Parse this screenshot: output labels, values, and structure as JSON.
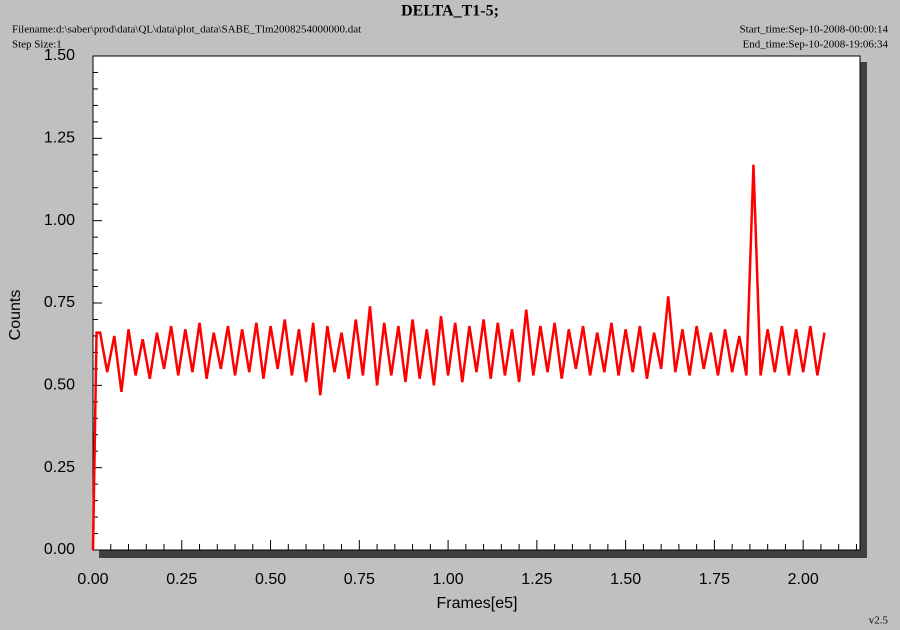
{
  "chart_data": {
    "type": "line",
    "title": "DELTA_T1-5;",
    "filename": "Filename:d:\\saber\\prod\\data\\QL\\data\\plot_data\\SABE_Tlm2008254000000.dat",
    "step_size": "Step Size:1",
    "start_time": "Start_time:Sep-10-2008-00:00:14",
    "end_time": "End_time:Sep-10-2008-19:06:34",
    "version": "v2.5",
    "xlabel": "Frames[e5]",
    "ylabel": "Counts",
    "xlim": [
      0,
      2.16
    ],
    "ylim": [
      0,
      1.5
    ],
    "xticks": [
      {
        "value": 0,
        "label": "0.00"
      },
      {
        "value": 0.25,
        "label": "0.25"
      },
      {
        "value": 0.5,
        "label": "0.50"
      },
      {
        "value": 0.75,
        "label": "0.75"
      },
      {
        "value": 1,
        "label": "1.00"
      },
      {
        "value": 1.25,
        "label": "1.25"
      },
      {
        "value": 1.5,
        "label": "1.50"
      },
      {
        "value": 1.75,
        "label": "1.75"
      },
      {
        "value": 2,
        "label": "2.00"
      }
    ],
    "yticks": [
      {
        "value": 0,
        "label": "0.00"
      },
      {
        "value": 0.25,
        "label": "0.25"
      },
      {
        "value": 0.5,
        "label": "0.50"
      },
      {
        "value": 0.75,
        "label": "0.75"
      },
      {
        "value": 1,
        "label": "1.00"
      },
      {
        "value": 1.25,
        "label": "1.25"
      },
      {
        "value": 1.5,
        "label": "1.50"
      }
    ],
    "xticks_minor": [
      0.05,
      0.1,
      0.15,
      0.2,
      0.3,
      0.35,
      0.4,
      0.45,
      0.55,
      0.6,
      0.65,
      0.7,
      0.8,
      0.85,
      0.9,
      0.95,
      1.05,
      1.1,
      1.15,
      1.2,
      1.3,
      1.35,
      1.4,
      1.45,
      1.55,
      1.6,
      1.65,
      1.7,
      1.8,
      1.85,
      1.9,
      1.95,
      2.05,
      2.1,
      2.15
    ],
    "yticks_minor": [
      0.05,
      0.1,
      0.15,
      0.2,
      0.3,
      0.35,
      0.4,
      0.45,
      0.55,
      0.6,
      0.65,
      0.7,
      0.8,
      0.85,
      0.9,
      0.95,
      1.05,
      1.1,
      1.15,
      1.2,
      1.3,
      1.35,
      1.4,
      1.45
    ],
    "series": [
      {
        "color": "#ff0000",
        "x": [
          0,
          0.01,
          0.02,
          0.04,
          0.06,
          0.08,
          0.1,
          0.12,
          0.14,
          0.16,
          0.18,
          0.2,
          0.22,
          0.24,
          0.26,
          0.28,
          0.3,
          0.32,
          0.34,
          0.36,
          0.38,
          0.4,
          0.42,
          0.44,
          0.46,
          0.48,
          0.5,
          0.52,
          0.54,
          0.56,
          0.58,
          0.6,
          0.62,
          0.64,
          0.66,
          0.68,
          0.7,
          0.72,
          0.74,
          0.76,
          0.78,
          0.8,
          0.82,
          0.84,
          0.86,
          0.88,
          0.9,
          0.92,
          0.94,
          0.96,
          0.98,
          1.0,
          1.02,
          1.04,
          1.06,
          1.08,
          1.1,
          1.12,
          1.14,
          1.16,
          1.18,
          1.2,
          1.22,
          1.24,
          1.26,
          1.28,
          1.3,
          1.32,
          1.34,
          1.36,
          1.38,
          1.4,
          1.42,
          1.44,
          1.46,
          1.48,
          1.5,
          1.52,
          1.54,
          1.56,
          1.58,
          1.6,
          1.62,
          1.64,
          1.66,
          1.68,
          1.7,
          1.72,
          1.74,
          1.76,
          1.78,
          1.8,
          1.82,
          1.84,
          1.86,
          1.88,
          1.9,
          1.92,
          1.94,
          1.96,
          1.98,
          2.0,
          2.02,
          2.04,
          2.06
        ],
        "values": [
          0,
          0.66,
          0.66,
          0.54,
          0.65,
          0.48,
          0.67,
          0.53,
          0.64,
          0.52,
          0.66,
          0.55,
          0.68,
          0.53,
          0.67,
          0.54,
          0.69,
          0.52,
          0.66,
          0.55,
          0.68,
          0.53,
          0.67,
          0.54,
          0.69,
          0.52,
          0.68,
          0.55,
          0.7,
          0.53,
          0.67,
          0.51,
          0.69,
          0.47,
          0.68,
          0.54,
          0.66,
          0.52,
          0.7,
          0.53,
          0.74,
          0.5,
          0.69,
          0.53,
          0.68,
          0.51,
          0.7,
          0.52,
          0.67,
          0.5,
          0.71,
          0.53,
          0.69,
          0.51,
          0.68,
          0.54,
          0.7,
          0.52,
          0.69,
          0.53,
          0.67,
          0.51,
          0.73,
          0.53,
          0.68,
          0.54,
          0.69,
          0.52,
          0.67,
          0.55,
          0.68,
          0.53,
          0.66,
          0.54,
          0.69,
          0.53,
          0.67,
          0.54,
          0.68,
          0.52,
          0.66,
          0.55,
          0.77,
          0.54,
          0.67,
          0.53,
          0.68,
          0.55,
          0.66,
          0.53,
          0.67,
          0.54,
          0.65,
          0.53,
          1.17,
          0.53,
          0.67,
          0.54,
          0.68,
          0.53,
          0.67,
          0.54,
          0.68,
          0.53,
          0.66
        ]
      }
    ]
  }
}
